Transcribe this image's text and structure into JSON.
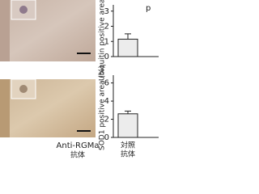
{
  "image_labels": {
    "antibody": "Anti-RGMa",
    "antibody_sub": "抗体"
  },
  "chart_data": [
    {
      "type": "bar",
      "y_label": "Ubiquitin positive area (%)",
      "annotation": "p",
      "categories": [
        null
      ],
      "values": [
        1.15
      ],
      "errors": [
        0.35
      ],
      "color": "#ececec",
      "ylim": [
        0,
        3.2
      ],
      "yticks": [
        0,
        1,
        2,
        3
      ]
    },
    {
      "type": "bar",
      "y_label": "SOD1 positive area (%)",
      "categories": [
        "対照"
      ],
      "category_sublabels": [
        "抗体"
      ],
      "values": [
        2.6
      ],
      "errors": [
        0.3
      ],
      "color": "#ececec",
      "ylim": [
        0,
        6.5
      ],
      "yticks": [
        0,
        2,
        4,
        6
      ]
    }
  ]
}
